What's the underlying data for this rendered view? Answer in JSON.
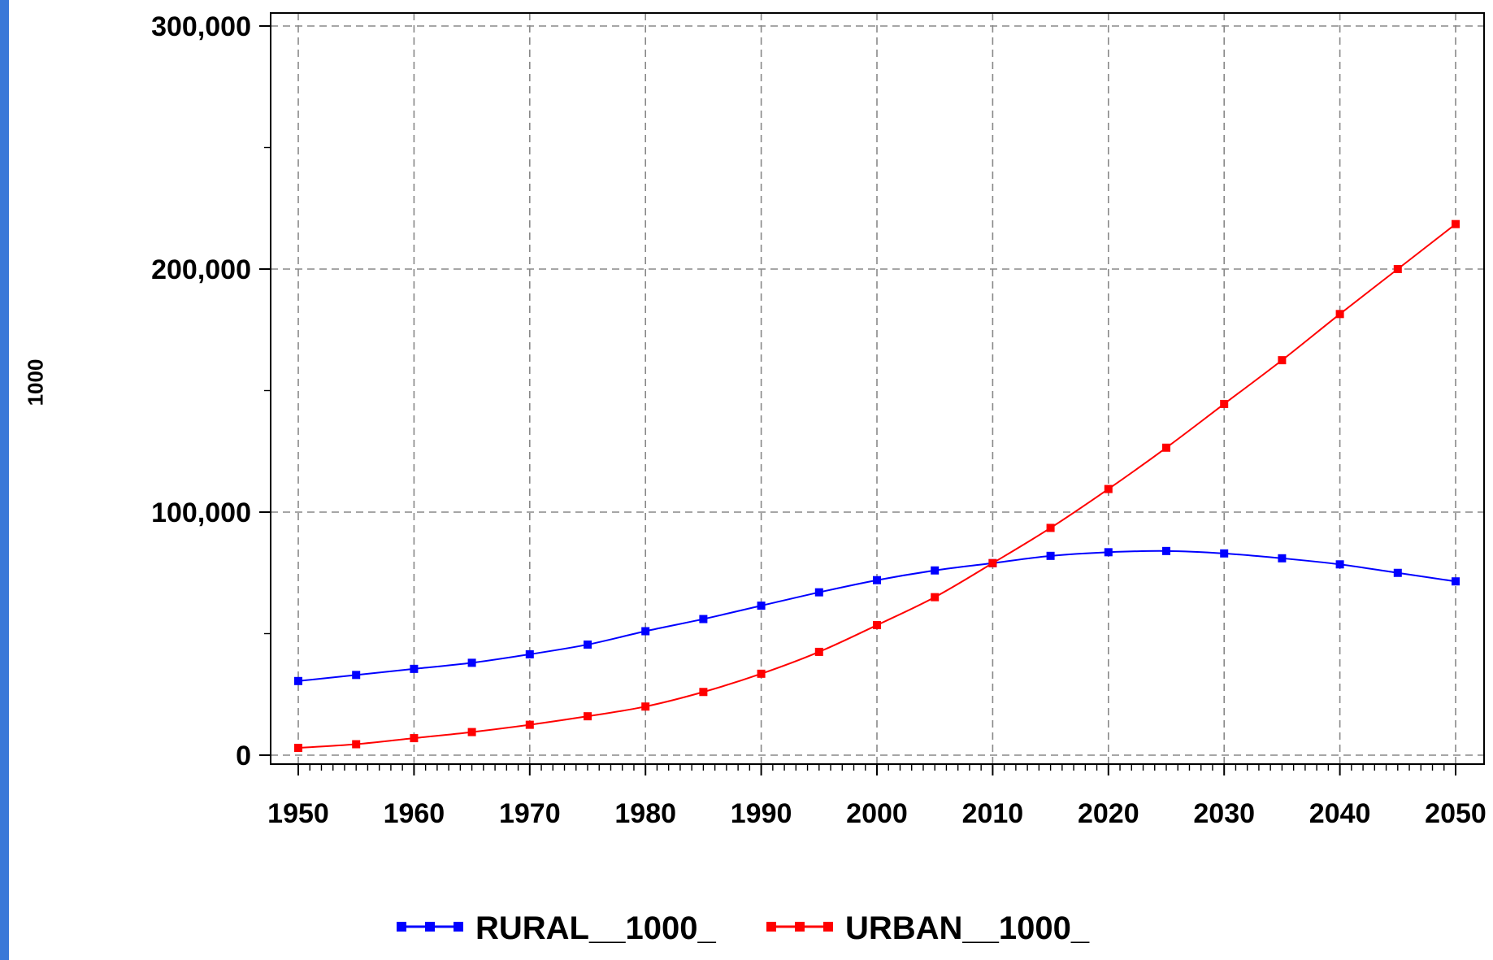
{
  "chart_data": {
    "type": "line",
    "title": "",
    "xlabel": "",
    "ylabel": "1000",
    "xlim": [
      1950,
      2050
    ],
    "ylim": [
      0,
      300000
    ],
    "x_ticks": [
      1950,
      1960,
      1970,
      1980,
      1990,
      2000,
      2010,
      2020,
      2030,
      2040,
      2050
    ],
    "x_tick_labels": [
      "1950",
      "1960",
      "1970",
      "1980",
      "1990",
      "2000",
      "2010",
      "2020",
      "2030",
      "2040",
      "2050"
    ],
    "y_ticks": [
      0,
      100000,
      200000,
      300000
    ],
    "y_tick_labels": [
      "0",
      "100,000",
      "200,000",
      "300,000"
    ],
    "grid": true,
    "legend_position": "bottom",
    "x": [
      1950,
      1955,
      1960,
      1965,
      1970,
      1975,
      1980,
      1985,
      1990,
      1995,
      2000,
      2005,
      2010,
      2015,
      2020,
      2025,
      2030,
      2035,
      2040,
      2045,
      2050
    ],
    "series": [
      {
        "name": "RURAL__1000_",
        "color": "#0000ff",
        "values": [
          30500,
          33000,
          35500,
          38000,
          41500,
          45500,
          51000,
          56000,
          61500,
          67000,
          72000,
          76000,
          79000,
          82000,
          83500,
          84000,
          83000,
          81000,
          78500,
          75000,
          71500
        ]
      },
      {
        "name": "URBAN__1000_",
        "color": "#ff0000",
        "values": [
          3000,
          4500,
          7000,
          9500,
          12500,
          16000,
          20000,
          26000,
          33500,
          42500,
          53500,
          65000,
          79000,
          93500,
          109500,
          126500,
          144500,
          162500,
          181500,
          200000,
          218500
        ]
      }
    ]
  }
}
